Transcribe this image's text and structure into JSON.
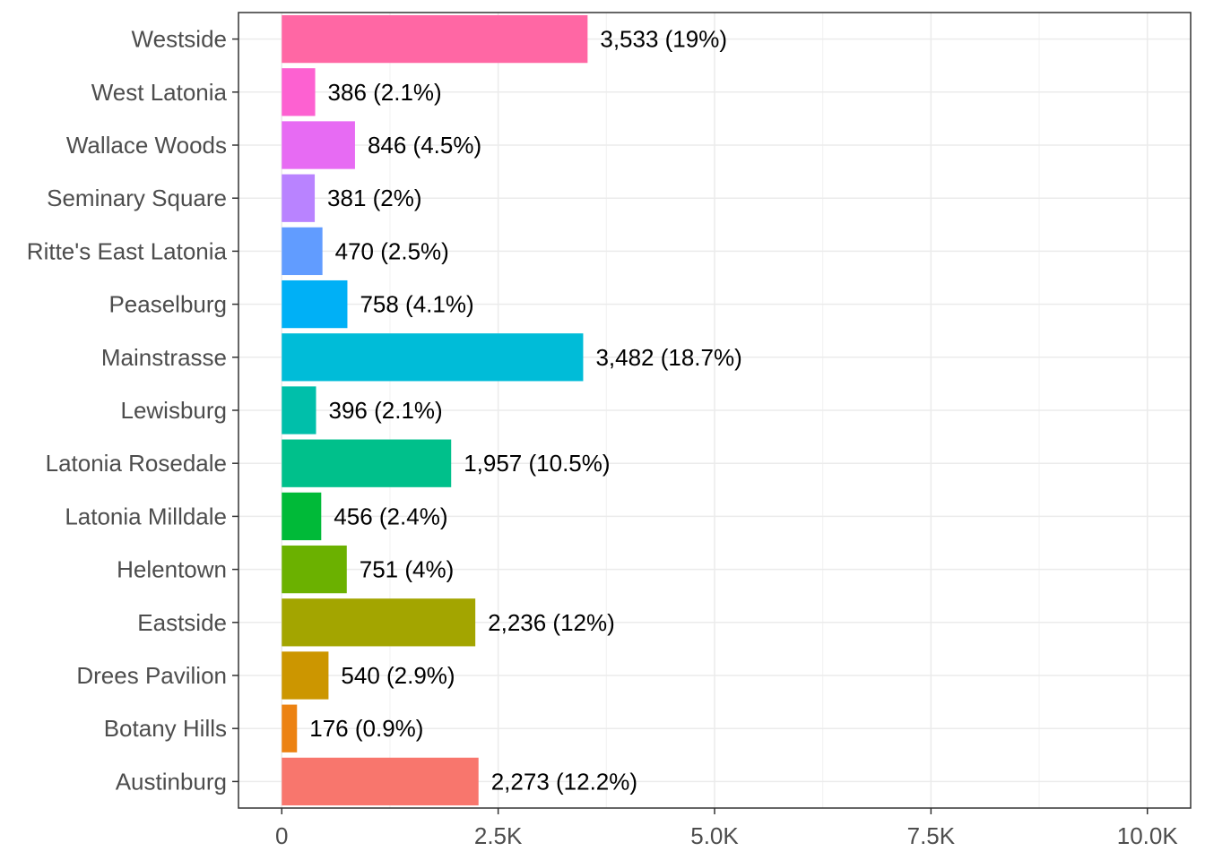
{
  "chart_data": {
    "type": "bar",
    "orientation": "horizontal",
    "title": "",
    "xlabel": "",
    "ylabel": "",
    "xlim": [
      -500,
      10500
    ],
    "grid": true,
    "legend": "none",
    "x_ticks": [
      {
        "value": 0,
        "label": "0"
      },
      {
        "value": 2500,
        "label": "2.5K"
      },
      {
        "value": 5000,
        "label": "5.0K"
      },
      {
        "value": 7500,
        "label": "7.5K"
      },
      {
        "value": 10000,
        "label": "10.0K"
      }
    ],
    "categories": [
      "Austinburg",
      "Botany Hills",
      "Drees Pavilion",
      "Eastside",
      "Helentown",
      "Latonia Milldale",
      "Latonia Rosedale",
      "Lewisburg",
      "Mainstrasse",
      "Peaselburg",
      "Ritte's East Latonia",
      "Seminary Square",
      "Wallace Woods",
      "West Latonia",
      "Westside"
    ],
    "values": [
      2273,
      176,
      540,
      2236,
      751,
      456,
      1957,
      396,
      3482,
      758,
      470,
      381,
      846,
      386,
      3533
    ],
    "labels": [
      "2,273 (12.2%)",
      "176 (0.9%)",
      "540 (2.9%)",
      "2,236 (12%)",
      "751 (4%)",
      "456 (2.4%)",
      "1,957 (10.5%)",
      "396 (2.1%)",
      "3,482 (18.7%)",
      "758 (4.1%)",
      "470 (2.5%)",
      "381 (2%)",
      "846 (4.5%)",
      "386 (2.1%)",
      "3,533 (19%)"
    ],
    "colors": [
      "#F8766D",
      "#EC8212",
      "#CC9600",
      "#A3A500",
      "#6BB100",
      "#00BA38",
      "#00C08B",
      "#00BFAA",
      "#00BCD8",
      "#00B0F6",
      "#619CFF",
      "#B983FF",
      "#E76BF3",
      "#FD61D1",
      "#FF67A4"
    ]
  }
}
